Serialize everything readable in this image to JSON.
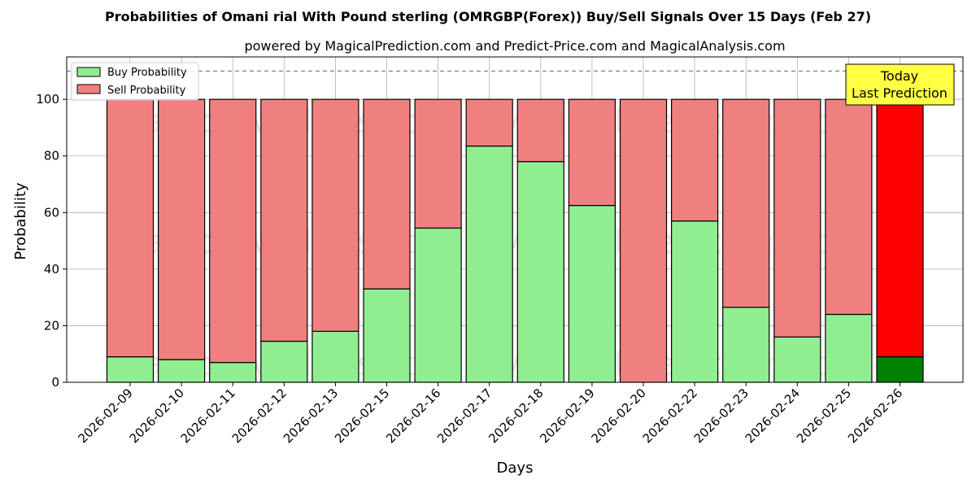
{
  "chart_data": {
    "type": "bar",
    "stacked": true,
    "title": "Probabilities of Omani rial With Pound sterling (OMRGBP(Forex)) Buy/Sell Signals Over 15 Days (Feb 27)",
    "subtitle": "powered by MagicalPrediction.com and Predict-Price.com and MagicalAnalysis.com",
    "xlabel": "Days",
    "ylabel": "Probability",
    "ylim": [
      0,
      115
    ],
    "yticks": [
      0,
      20,
      40,
      60,
      80,
      100
    ],
    "reference_line": 110,
    "grid": true,
    "legend_position": "top-left",
    "categories": [
      "2026-02-09",
      "2026-02-10",
      "2026-02-11",
      "2026-02-12",
      "2026-02-13",
      "2026-02-15",
      "2026-02-16",
      "2026-02-17",
      "2026-02-18",
      "2026-02-19",
      "2026-02-20",
      "2026-02-22",
      "2026-02-23",
      "2026-02-24",
      "2026-02-25",
      "2026-02-26"
    ],
    "series": [
      {
        "name": "Buy Probability",
        "color": "#90ee90",
        "values": [
          9,
          8,
          7,
          14.5,
          18,
          33,
          54.5,
          83.5,
          78,
          62.5,
          0,
          57,
          26.5,
          16,
          24,
          9
        ]
      },
      {
        "name": "Sell Probability",
        "color": "#f08080",
        "values": [
          91,
          92,
          93,
          85.5,
          82,
          67,
          45.5,
          16.5,
          22,
          37.5,
          100,
          43,
          73.5,
          84,
          76,
          91
        ]
      }
    ],
    "highlight": {
      "index": 15,
      "buy_color": "#008000",
      "sell_color": "#ff0000"
    },
    "annotation": {
      "line1": "Today",
      "line2": "Last Prediction",
      "background": "#ffff44"
    },
    "watermarks": [
      "MagicalAnalysis.com",
      "MagicalPrediction.com"
    ]
  }
}
